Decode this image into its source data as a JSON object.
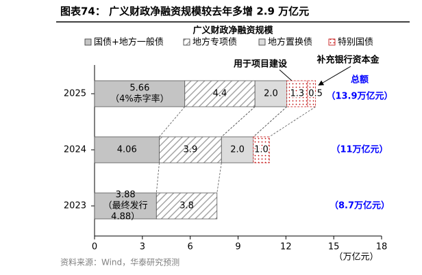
{
  "header": {
    "title": "图表74：  广义财政净融资规模较去年多增 2.9 万亿元"
  },
  "chart_data": {
    "type": "stacked-barh",
    "title": "广义财政净融资规模",
    "categories": [
      "2025",
      "2024",
      "2023"
    ],
    "series": [
      {
        "name": "国债+地方一般债",
        "color": "#c4c4c4",
        "pattern": "solid",
        "values": [
          5.66,
          4.06,
          3.88
        ],
        "value_labels": [
          [
            "5.66",
            "（4%赤字率）"
          ],
          [
            "4.06"
          ],
          [
            "3.88",
            "（最终发行",
            "4.88）"
          ]
        ]
      },
      {
        "name": "地方专项债",
        "color": "#a6a6a6",
        "pattern": "hatch",
        "values": [
          4.4,
          3.9,
          3.8
        ]
      },
      {
        "name": "地方置换债",
        "color": "#dcdcdc",
        "pattern": "solid",
        "values": [
          2.0,
          2.0,
          null
        ],
        "value_labels": [
          "2.0",
          "2.0",
          null
        ]
      },
      {
        "name": "特别国债",
        "color": "#c00000",
        "pattern": "dots",
        "values": [
          1.3,
          1.0,
          null
        ],
        "value_labels": [
          "1.3",
          "1.0",
          null
        ]
      }
    ],
    "annotations": [
      {
        "text": "用于项目建设"
      },
      {
        "text": "补充银行资本金",
        "value": 0.5
      }
    ],
    "totals_header": "总额",
    "totals": [
      {
        "value": 13.9,
        "label": "（13.9万亿元）"
      },
      {
        "value": 11,
        "label": "（11万亿元）"
      },
      {
        "value": 8.7,
        "label": "（8.7万亿元）"
      }
    ],
    "unit": "（万亿元）",
    "xlim": [
      0,
      18
    ],
    "xticks": [
      0,
      3,
      6,
      9,
      12,
      15,
      18
    ]
  },
  "footer": {
    "source": "资料来源：Wind，华泰研究预测"
  }
}
